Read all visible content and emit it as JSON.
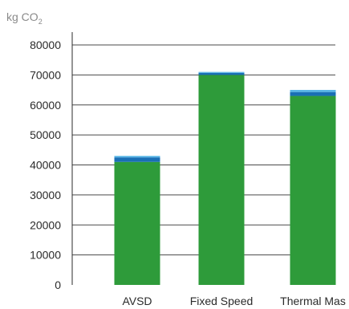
{
  "chart_data": {
    "type": "bar",
    "stacked": true,
    "ylabel": "kg CO",
    "ylabel_subscript": "2",
    "categories": [
      "AVSD",
      "Fixed Speed",
      "Thermal Mas"
    ],
    "series": [
      {
        "values": [
          41000,
          70000,
          63000
        ]
      },
      {
        "values": [
          1500,
          700,
          1300
        ]
      },
      {
        "values": [
          500,
          300,
          700
        ]
      }
    ],
    "ylim": [
      0,
      80000
    ],
    "yticks": [
      0,
      10000,
      20000,
      30000,
      40000,
      50000,
      60000,
      70000,
      80000
    ],
    "yticks_labels": [
      "0",
      "10000",
      "20000",
      "30000",
      "40000",
      "50000",
      "60000",
      "70000",
      "80000"
    ],
    "grid": true,
    "legend": "none",
    "colors": [
      "#2e9b3a",
      "#1a6fb5",
      "#55b4e6"
    ],
    "gridline_color": "#4a4a4a",
    "axis_color": "#2b2b2b"
  }
}
